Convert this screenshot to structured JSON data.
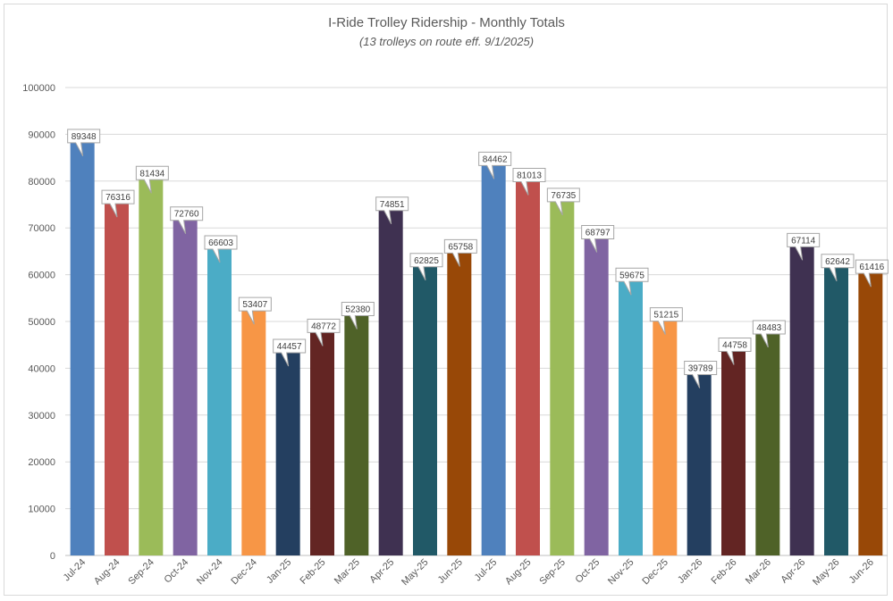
{
  "chart_data": {
    "type": "bar",
    "title": "I-Ride Trolley Ridership - Monthly Totals",
    "subtitle": "(13 trolleys on route eff. 9/1/2025)",
    "xlabel": "",
    "ylabel": "",
    "ylim": [
      0,
      100000
    ],
    "yticks": [
      0,
      10000,
      20000,
      30000,
      40000,
      50000,
      60000,
      70000,
      80000,
      90000,
      100000
    ],
    "grid": true,
    "legend": "none",
    "categories": [
      "Jul-24",
      "Aug-24",
      "Sep-24",
      "Oct-24",
      "Nov-24",
      "Dec-24",
      "Jan-25",
      "Feb-25",
      "Mar-25",
      "Apr-25",
      "May-25",
      "Jun-25",
      "Jul-25",
      "Aug-25",
      "Sep-25",
      "Oct-25",
      "Nov-25",
      "Dec-25",
      "Jan-26",
      "Feb-26",
      "Mar-26",
      "Apr-26",
      "May-26",
      "Jun-26"
    ],
    "values": [
      89348,
      76316,
      81434,
      72760,
      66603,
      53407,
      44457,
      48772,
      52380,
      74851,
      62825,
      65758,
      84462,
      81013,
      76735,
      68797,
      59675,
      51215,
      39789,
      44758,
      48483,
      67114,
      62642,
      61416
    ],
    "colors": [
      "#4f81bd",
      "#c0504d",
      "#9bbb59",
      "#8064a2",
      "#4bacc6",
      "#f79646",
      "#243f60",
      "#632523",
      "#4f6228",
      "#3f3151",
      "#215967",
      "#984807",
      "#4f81bd",
      "#c0504d",
      "#9bbb59",
      "#8064a2",
      "#4bacc6",
      "#f79646",
      "#243f60",
      "#632523",
      "#4f6228",
      "#3f3151",
      "#215967",
      "#984807"
    ]
  }
}
